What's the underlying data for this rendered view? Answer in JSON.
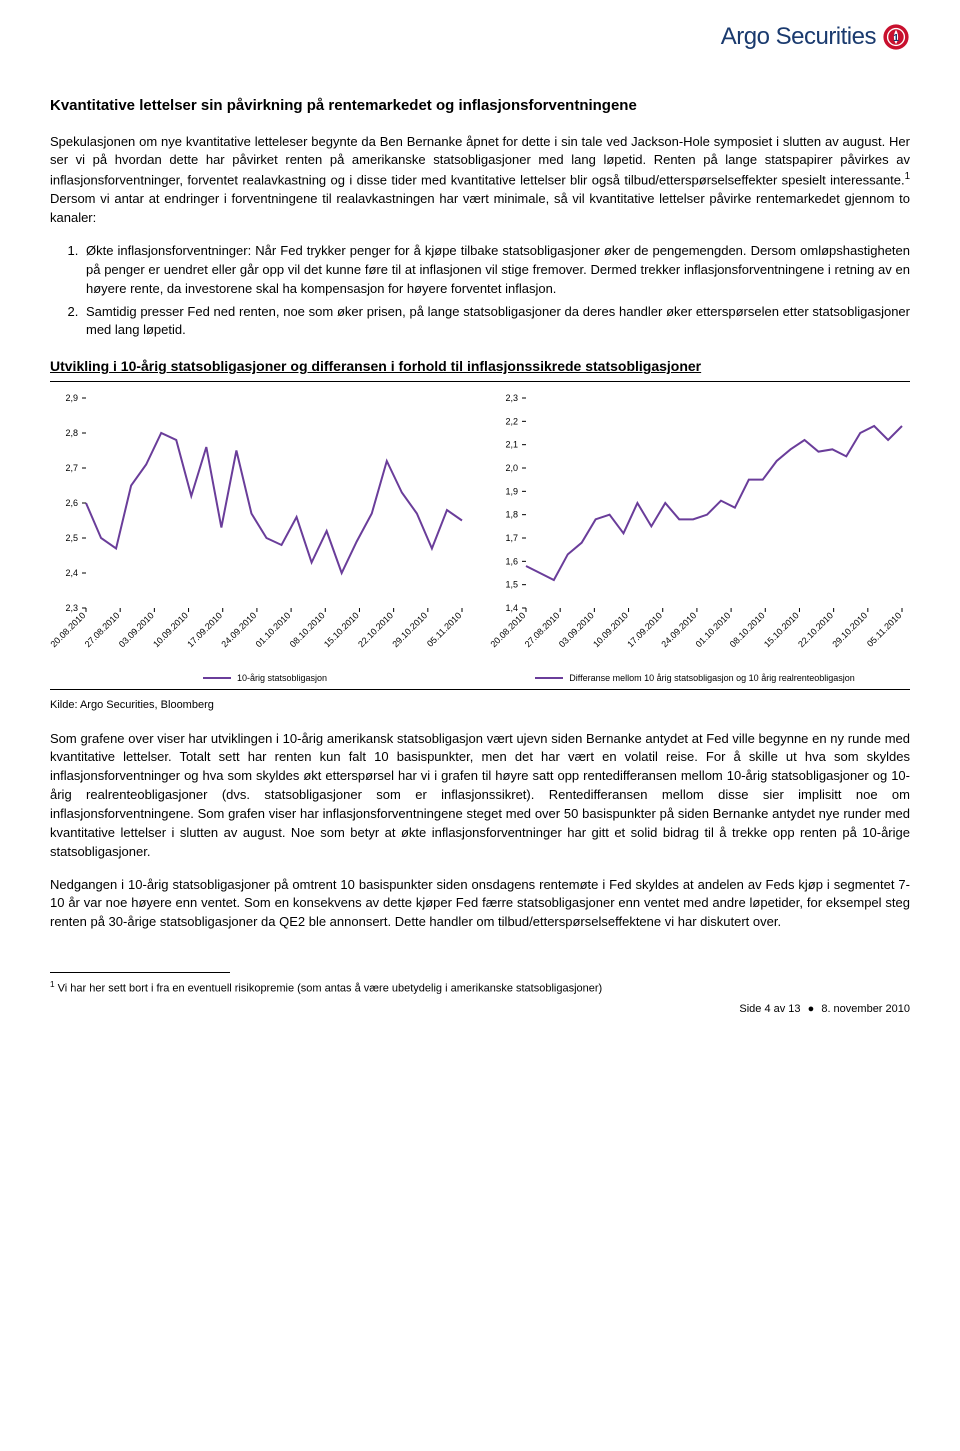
{
  "brand": {
    "name": "Argo Securities"
  },
  "heading": "Kvantitative lettelser sin påvirkning på rentemarkedet og inflasjonsforventningene",
  "para1": "Spekulasjonen om nye kvantitative letteleser begynte da Ben Bernanke åpnet for dette i sin tale ved Jackson-Hole symposiet i slutten av august. Her ser vi på hvordan dette har påvirket renten på amerikanske statsobligasjoner med lang løpetid. Renten på lange statspapirer påvirkes av inflasjonsforventninger, forventet realavkastning og i disse tider med kvantitative lettelser blir også tilbud/etterspørselseffekter spesielt interessante.",
  "para1_tail": " Dersom vi antar at endringer i forventningene til realavkastningen har vært minimale, så vil kvantitative lettelser påvirke rentemarkedet gjennom to kanaler:",
  "list": {
    "item1": "Økte inflasjonsforventninger: Når Fed trykker penger for å kjøpe tilbake statsobligasjoner øker de pengemengden. Dersom omløpshastigheten på penger er uendret eller går opp vil det kunne føre til at inflasjonen vil stige fremover. Dermed trekker inflasjonsforventningene i retning av en høyere rente, da investorene skal ha kompensasjon for høyere forventet inflasjon.",
    "item2": "Samtidig presser Fed ned renten, noe som øker prisen, på lange statsobligasjoner da deres handler øker etterspørselen etter statsobligasjoner med lang løpetid."
  },
  "chart_title": "Utvikling i 10-årig statsobligasjoner og differansen i forhold til inflasjonssikrede statsobligasjoner",
  "chart_left": {
    "type": "line",
    "ylim": [
      2.3,
      2.9
    ],
    "ytick_step": 0.1,
    "yticks": [
      "2,3",
      "2,4",
      "2,5",
      "2,6",
      "2,7",
      "2,8",
      "2,9"
    ],
    "x_labels": [
      "20.08.2010",
      "27.08.2010",
      "03.09.2010",
      "10.09.2010",
      "17.09.2010",
      "24.09.2010",
      "01.10.2010",
      "08.10.2010",
      "15.10.2010",
      "22.10.2010",
      "29.10.2010",
      "05.11.2010"
    ],
    "values": [
      2.6,
      2.5,
      2.47,
      2.65,
      2.71,
      2.8,
      2.78,
      2.62,
      2.76,
      2.53,
      2.75,
      2.57,
      2.5,
      2.48,
      2.56,
      2.43,
      2.52,
      2.4,
      2.49,
      2.57,
      2.72,
      2.63,
      2.57,
      2.47,
      2.58,
      2.55
    ],
    "line_color": "#6a3d9a",
    "legend": "10-årig statsobligasjon",
    "background_color": "#ffffff"
  },
  "chart_right": {
    "type": "line",
    "ylim": [
      1.4,
      2.3
    ],
    "ytick_step": 0.1,
    "yticks": [
      "1,4",
      "1,5",
      "1,6",
      "1,7",
      "1,8",
      "1,9",
      "2,0",
      "2,1",
      "2,2",
      "2,3"
    ],
    "x_labels": [
      "20.08.2010",
      "27.08.2010",
      "03.09.2010",
      "10.09.2010",
      "17.09.2010",
      "24.09.2010",
      "01.10.2010",
      "08.10.2010",
      "15.10.2010",
      "22.10.2010",
      "29.10.2010",
      "05.11.2010"
    ],
    "values": [
      1.58,
      1.55,
      1.52,
      1.63,
      1.68,
      1.78,
      1.8,
      1.72,
      1.85,
      1.75,
      1.85,
      1.78,
      1.78,
      1.8,
      1.86,
      1.83,
      1.95,
      1.95,
      2.03,
      2.08,
      2.12,
      2.07,
      2.08,
      2.05,
      2.15,
      2.18,
      2.12,
      2.18
    ],
    "line_color": "#6a3d9a",
    "legend": "Differanse mellom 10 årig statsobligasjon og 10 årig realrenteobligasjon",
    "background_color": "#ffffff"
  },
  "source": "Kilde: Argo Securities, Bloomberg",
  "para2": "Som grafene over viser har utviklingen i 10-årig amerikansk statsobligasjon vært ujevn siden Bernanke antydet at Fed ville begynne en ny runde med kvantitative lettelser. Totalt sett har renten kun falt 10 basispunkter, men det har vært en volatil reise. For å skille ut hva som skyldes inflasjonsforventninger og hva som skyldes økt etterspørsel har vi i grafen til høyre satt opp rentedifferansen mellom 10-årig statsobligasjoner og 10-årig realrenteobligasjoner (dvs. statsobligasjoner som er inflasjonssikret). Rentedifferansen mellom disse sier implisitt noe om inflasjonsforventningene. Som grafen viser har inflasjonsforventningene steget med over 50 basispunkter på siden Bernanke antydet nye runder med kvantitative lettelser i slutten av august. Noe som betyr at økte inflasjonsforventninger har gitt et solid bidrag til å trekke opp renten på 10-årige statsobligasjoner.",
  "para3": "Nedgangen i 10-årig statsobligasjoner på omtrent 10 basispunkter siden onsdagens rentemøte i Fed skyldes at andelen av Feds kjøp i segmentet 7-10 år var noe høyere enn ventet. Som en konsekvens av dette kjøper Fed færre statsobligasjoner enn ventet med andre løpetider, for eksempel steg renten på 30-årige statsobligasjoner da QE2 ble annonsert. Dette handler om tilbud/etterspørselseffektene vi har diskutert over.",
  "footnote": "Vi har her sett bort i fra en eventuell risikopremie (som antas å være ubetydelig i amerikanske statsobligasjoner)",
  "footnote_num": "1",
  "footer": {
    "page": "Side 4 av 13",
    "date": "8. november 2010"
  }
}
